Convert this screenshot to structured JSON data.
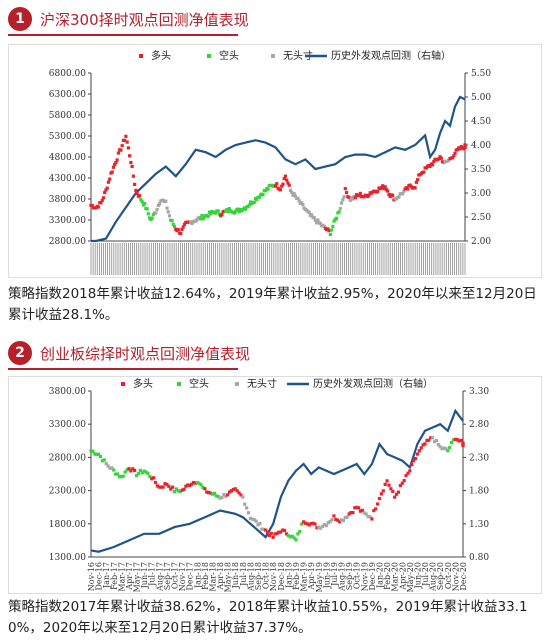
{
  "sections": [
    {
      "badge": "1",
      "title": "沪深300择时观点回测净值表现",
      "paragraph": "策略指数2018年累计收益12.64%，2019年累计收益2.95%，2020年以来至12月20日累计收益28.1%。"
    },
    {
      "badge": "2",
      "title": "创业板综择时观点回测净值表现",
      "paragraph": "策略指数2017年累计收益38.62%，2018年累计收益10.55%，2019年累计收益33.10%，2020年以来至12月20日累计收益37.37%。"
    }
  ],
  "legend_colors": {
    "long": "#e8232b",
    "short": "#35d43a",
    "neutral": "#a6a6a6",
    "line": "#1e5487"
  },
  "chart_data": [
    {
      "type": "scatter+line",
      "legend": [
        "多头",
        "空头",
        "无头寸",
        "历史外发观点回测（右轴）"
      ],
      "left_axis": {
        "ticks": [
          "6800.00",
          "6300.00",
          "5800.00",
          "5300.00",
          "4800.00",
          "4300.00",
          "3800.00",
          "3300.00",
          "2800.00"
        ],
        "ylim": [
          2800,
          6800
        ]
      },
      "right_axis": {
        "ticks": [
          "5.50",
          "5.00",
          "4.50",
          "4.00",
          "3.50",
          "3.00",
          "2.50",
          "2.00"
        ],
        "ylim": [
          2.0,
          5.5
        ]
      },
      "grid": false,
      "legend_position": "top",
      "x_labels_note": "dense overlapping date labels",
      "index_series": [
        {
          "t": 0,
          "v": 3650,
          "s": "long"
        },
        {
          "t": 1,
          "v": 3600,
          "s": "long"
        },
        {
          "t": 2,
          "v": 3700,
          "s": "long"
        },
        {
          "t": 3,
          "v": 4000,
          "s": "long"
        },
        {
          "t": 4,
          "v": 4400,
          "s": "long"
        },
        {
          "t": 5,
          "v": 4700,
          "s": "long"
        },
        {
          "t": 6,
          "v": 5000,
          "s": "long"
        },
        {
          "t": 7,
          "v": 5300,
          "s": "long"
        },
        {
          "t": 8,
          "v": 4700,
          "s": "long"
        },
        {
          "t": 9,
          "v": 4000,
          "s": "long"
        },
        {
          "t": 10,
          "v": 3800,
          "s": "short"
        },
        {
          "t": 11,
          "v": 3600,
          "s": "short"
        },
        {
          "t": 12,
          "v": 3300,
          "s": "short"
        },
        {
          "t": 13,
          "v": 3500,
          "s": "neutral"
        },
        {
          "t": 14,
          "v": 3800,
          "s": "neutral"
        },
        {
          "t": 15,
          "v": 3700,
          "s": "neutral"
        },
        {
          "t": 16,
          "v": 3300,
          "s": "short"
        },
        {
          "t": 17,
          "v": 3100,
          "s": "long"
        },
        {
          "t": 18,
          "v": 3000,
          "s": "long"
        },
        {
          "t": 19,
          "v": 3200,
          "s": "long"
        },
        {
          "t": 20,
          "v": 3250,
          "s": "neutral"
        },
        {
          "t": 21,
          "v": 3300,
          "s": "neutral"
        },
        {
          "t": 22,
          "v": 3350,
          "s": "short"
        },
        {
          "t": 23,
          "v": 3400,
          "s": "short"
        },
        {
          "t": 24,
          "v": 3450,
          "s": "short"
        },
        {
          "t": 25,
          "v": 3500,
          "s": "short"
        },
        {
          "t": 26,
          "v": 3450,
          "s": "long"
        },
        {
          "t": 27,
          "v": 3500,
          "s": "short"
        },
        {
          "t": 28,
          "v": 3550,
          "s": "short"
        },
        {
          "t": 29,
          "v": 3500,
          "s": "short"
        },
        {
          "t": 30,
          "v": 3550,
          "s": "short"
        },
        {
          "t": 31,
          "v": 3600,
          "s": "short"
        },
        {
          "t": 32,
          "v": 3700,
          "s": "short"
        },
        {
          "t": 33,
          "v": 3800,
          "s": "short"
        },
        {
          "t": 34,
          "v": 3900,
          "s": "short"
        },
        {
          "t": 35,
          "v": 4000,
          "s": "short"
        },
        {
          "t": 36,
          "v": 4100,
          "s": "short"
        },
        {
          "t": 37,
          "v": 4150,
          "s": "long"
        },
        {
          "t": 38,
          "v": 4050,
          "s": "long"
        },
        {
          "t": 39,
          "v": 4350,
          "s": "long"
        },
        {
          "t": 40,
          "v": 4000,
          "s": "neutral"
        },
        {
          "t": 41,
          "v": 3850,
          "s": "neutral"
        },
        {
          "t": 42,
          "v": 3700,
          "s": "neutral"
        },
        {
          "t": 43,
          "v": 3550,
          "s": "neutral"
        },
        {
          "t": 44,
          "v": 3400,
          "s": "neutral"
        },
        {
          "t": 45,
          "v": 3300,
          "s": "neutral"
        },
        {
          "t": 46,
          "v": 3200,
          "s": "neutral"
        },
        {
          "t": 47,
          "v": 3100,
          "s": "long"
        },
        {
          "t": 48,
          "v": 3000,
          "s": "short"
        },
        {
          "t": 49,
          "v": 3300,
          "s": "short"
        },
        {
          "t": 50,
          "v": 3600,
          "s": "neutral"
        },
        {
          "t": 51,
          "v": 4000,
          "s": "long"
        },
        {
          "t": 52,
          "v": 3800,
          "s": "neutral"
        },
        {
          "t": 53,
          "v": 3850,
          "s": "long"
        },
        {
          "t": 54,
          "v": 3900,
          "s": "long"
        },
        {
          "t": 55,
          "v": 3850,
          "s": "long"
        },
        {
          "t": 56,
          "v": 3950,
          "s": "long"
        },
        {
          "t": 57,
          "v": 4000,
          "s": "long"
        },
        {
          "t": 58,
          "v": 4050,
          "s": "long"
        },
        {
          "t": 59,
          "v": 4100,
          "s": "long"
        },
        {
          "t": 60,
          "v": 3900,
          "s": "long"
        },
        {
          "t": 61,
          "v": 3800,
          "s": "neutral"
        },
        {
          "t": 62,
          "v": 3900,
          "s": "neutral"
        },
        {
          "t": 63,
          "v": 4000,
          "s": "long"
        },
        {
          "t": 64,
          "v": 4100,
          "s": "long"
        },
        {
          "t": 65,
          "v": 4100,
          "s": "long"
        },
        {
          "t": 66,
          "v": 4400,
          "s": "long"
        },
        {
          "t": 67,
          "v": 4500,
          "s": "long"
        },
        {
          "t": 68,
          "v": 4600,
          "s": "long"
        },
        {
          "t": 69,
          "v": 4700,
          "s": "long"
        },
        {
          "t": 70,
          "v": 4800,
          "s": "long"
        },
        {
          "t": 71,
          "v": 4650,
          "s": "neutral"
        },
        {
          "t": 72,
          "v": 4750,
          "s": "long"
        },
        {
          "t": 73,
          "v": 4900,
          "s": "long"
        },
        {
          "t": 74,
          "v": 5000,
          "s": "long"
        },
        {
          "t": 75,
          "v": 5050,
          "s": "long"
        }
      ],
      "nav_line": [
        {
          "t": 0,
          "v": 2.0
        },
        {
          "t": 1,
          "v": 2.0
        },
        {
          "t": 3,
          "v": 2.05
        },
        {
          "t": 5,
          "v": 2.4
        },
        {
          "t": 7,
          "v": 2.7
        },
        {
          "t": 9,
          "v": 3.0
        },
        {
          "t": 11,
          "v": 3.2
        },
        {
          "t": 13,
          "v": 3.4
        },
        {
          "t": 15,
          "v": 3.55
        },
        {
          "t": 17,
          "v": 3.35
        },
        {
          "t": 19,
          "v": 3.6
        },
        {
          "t": 21,
          "v": 3.9
        },
        {
          "t": 23,
          "v": 3.85
        },
        {
          "t": 25,
          "v": 3.75
        },
        {
          "t": 27,
          "v": 3.9
        },
        {
          "t": 29,
          "v": 4.0
        },
        {
          "t": 31,
          "v": 4.05
        },
        {
          "t": 33,
          "v": 4.1
        },
        {
          "t": 35,
          "v": 4.05
        },
        {
          "t": 37,
          "v": 3.95
        },
        {
          "t": 39,
          "v": 3.7
        },
        {
          "t": 41,
          "v": 3.6
        },
        {
          "t": 43,
          "v": 3.7
        },
        {
          "t": 45,
          "v": 3.5
        },
        {
          "t": 47,
          "v": 3.55
        },
        {
          "t": 49,
          "v": 3.6
        },
        {
          "t": 51,
          "v": 3.75
        },
        {
          "t": 53,
          "v": 3.8
        },
        {
          "t": 55,
          "v": 3.8
        },
        {
          "t": 57,
          "v": 3.75
        },
        {
          "t": 59,
          "v": 3.85
        },
        {
          "t": 61,
          "v": 3.95
        },
        {
          "t": 63,
          "v": 3.9
        },
        {
          "t": 65,
          "v": 4.0
        },
        {
          "t": 67,
          "v": 4.2
        },
        {
          "t": 68,
          "v": 3.75
        },
        {
          "t": 69,
          "v": 3.9
        },
        {
          "t": 70,
          "v": 4.25
        },
        {
          "t": 71,
          "v": 4.5
        },
        {
          "t": 72,
          "v": 4.4
        },
        {
          "t": 73,
          "v": 4.8
        },
        {
          "t": 74,
          "v": 5.0
        },
        {
          "t": 75,
          "v": 4.95
        }
      ]
    },
    {
      "type": "scatter+line",
      "legend": [
        "多头",
        "空头",
        "无头寸",
        "历史外发观点回测（右轴）"
      ],
      "left_axis": {
        "ticks": [
          "3800.00",
          "3300.00",
          "2800.00",
          "2300.00",
          "1800.00",
          "1300.00"
        ],
        "ylim": [
          1300,
          3800
        ]
      },
      "right_axis": {
        "ticks": [
          "3.30",
          "2.80",
          "2.30",
          "1.80",
          "1.30",
          "0.80"
        ],
        "ylim": [
          0.8,
          3.3
        ]
      },
      "grid": false,
      "legend_position": "top",
      "x_labels": [
        "Nov-16",
        "Dec-16",
        "Jan-17",
        "Feb-17",
        "Mar-17",
        "Apr-17",
        "May-17",
        "Jun-17",
        "Jul-17",
        "Aug-17",
        "Sep-17",
        "Oct-17",
        "Nov-17",
        "Dec-17",
        "Jan-18",
        "Feb-18",
        "Mar-18",
        "Apr-18",
        "May-18",
        "Jun-18",
        "Jul-18",
        "Aug-18",
        "Sep-18",
        "Oct-18",
        "Nov-18",
        "Dec-18",
        "Jan-19",
        "Feb-19",
        "Mar-19",
        "Apr-19",
        "May-19",
        "Jun-19",
        "Jul-19",
        "Aug-19",
        "Sep-19",
        "Oct-19",
        "Nov-19",
        "Dec-19",
        "Jan-20",
        "Feb-20",
        "Mar-20",
        "Apr-20",
        "May-20",
        "Jun-20",
        "Jul-20",
        "Aug-20",
        "Sep-20",
        "Oct-20",
        "Nov-20",
        "Dec-20"
      ],
      "index_series": [
        {
          "t": 0,
          "v": 2900,
          "s": "short"
        },
        {
          "t": 1,
          "v": 2850,
          "s": "short"
        },
        {
          "t": 2,
          "v": 2700,
          "s": "neutral"
        },
        {
          "t": 3,
          "v": 2600,
          "s": "short"
        },
        {
          "t": 4,
          "v": 2500,
          "s": "short"
        },
        {
          "t": 5,
          "v": 2650,
          "s": "long"
        },
        {
          "t": 6,
          "v": 2550,
          "s": "short"
        },
        {
          "t": 7,
          "v": 2600,
          "s": "short"
        },
        {
          "t": 8,
          "v": 2500,
          "s": "long"
        },
        {
          "t": 9,
          "v": 2350,
          "s": "long"
        },
        {
          "t": 10,
          "v": 2400,
          "s": "long"
        },
        {
          "t": 11,
          "v": 2300,
          "s": "short"
        },
        {
          "t": 12,
          "v": 2300,
          "s": "long"
        },
        {
          "t": 13,
          "v": 2400,
          "s": "long"
        },
        {
          "t": 14,
          "v": 2450,
          "s": "short"
        },
        {
          "t": 15,
          "v": 2300,
          "s": "long"
        },
        {
          "t": 16,
          "v": 2250,
          "s": "short"
        },
        {
          "t": 17,
          "v": 2200,
          "s": "neutral"
        },
        {
          "t": 18,
          "v": 2250,
          "s": "long"
        },
        {
          "t": 19,
          "v": 2300,
          "s": "long"
        },
        {
          "t": 20,
          "v": 2200,
          "s": "neutral"
        },
        {
          "t": 21,
          "v": 1900,
          "s": "neutral"
        },
        {
          "t": 22,
          "v": 1800,
          "s": "neutral"
        },
        {
          "t": 23,
          "v": 1700,
          "s": "long"
        },
        {
          "t": 24,
          "v": 1600,
          "s": "long"
        },
        {
          "t": 25,
          "v": 1700,
          "s": "long"
        },
        {
          "t": 26,
          "v": 1650,
          "s": "short"
        },
        {
          "t": 27,
          "v": 1550,
          "s": "short"
        },
        {
          "t": 28,
          "v": 1850,
          "s": "long"
        },
        {
          "t": 29,
          "v": 1800,
          "s": "long"
        },
        {
          "t": 30,
          "v": 1750,
          "s": "neutral"
        },
        {
          "t": 31,
          "v": 1800,
          "s": "neutral"
        },
        {
          "t": 32,
          "v": 1900,
          "s": "long"
        },
        {
          "t": 33,
          "v": 1850,
          "s": "neutral"
        },
        {
          "t": 34,
          "v": 1950,
          "s": "long"
        },
        {
          "t": 35,
          "v": 2050,
          "s": "long"
        },
        {
          "t": 36,
          "v": 1950,
          "s": "neutral"
        },
        {
          "t": 37,
          "v": 1900,
          "s": "long"
        },
        {
          "t": 38,
          "v": 2200,
          "s": "long"
        },
        {
          "t": 39,
          "v": 2450,
          "s": "long"
        },
        {
          "t": 40,
          "v": 2200,
          "s": "long"
        },
        {
          "t": 41,
          "v": 2400,
          "s": "long"
        },
        {
          "t": 42,
          "v": 2600,
          "s": "long"
        },
        {
          "t": 43,
          "v": 2850,
          "s": "long"
        },
        {
          "t": 44,
          "v": 3000,
          "s": "long"
        },
        {
          "t": 45,
          "v": 3100,
          "s": "neutral"
        },
        {
          "t": 46,
          "v": 2950,
          "s": "neutral"
        },
        {
          "t": 47,
          "v": 2900,
          "s": "short"
        },
        {
          "t": 48,
          "v": 3100,
          "s": "long"
        },
        {
          "t": 49,
          "v": 3000,
          "s": "long"
        }
      ],
      "nav_line": [
        {
          "t": 0,
          "v": 0.9
        },
        {
          "t": 1,
          "v": 0.88
        },
        {
          "t": 3,
          "v": 0.95
        },
        {
          "t": 5,
          "v": 1.05
        },
        {
          "t": 7,
          "v": 1.15
        },
        {
          "t": 9,
          "v": 1.15
        },
        {
          "t": 11,
          "v": 1.25
        },
        {
          "t": 13,
          "v": 1.3
        },
        {
          "t": 15,
          "v": 1.4
        },
        {
          "t": 17,
          "v": 1.5
        },
        {
          "t": 19,
          "v": 1.45
        },
        {
          "t": 20,
          "v": 1.4
        },
        {
          "t": 21,
          "v": 1.3
        },
        {
          "t": 22,
          "v": 1.2
        },
        {
          "t": 23,
          "v": 1.1
        },
        {
          "t": 24,
          "v": 1.3
        },
        {
          "t": 25,
          "v": 1.7
        },
        {
          "t": 26,
          "v": 1.95
        },
        {
          "t": 27,
          "v": 2.1
        },
        {
          "t": 28,
          "v": 2.2
        },
        {
          "t": 29,
          "v": 2.05
        },
        {
          "t": 30,
          "v": 2.15
        },
        {
          "t": 31,
          "v": 2.1
        },
        {
          "t": 32,
          "v": 2.05
        },
        {
          "t": 33,
          "v": 2.1
        },
        {
          "t": 34,
          "v": 2.15
        },
        {
          "t": 35,
          "v": 2.2
        },
        {
          "t": 36,
          "v": 2.05
        },
        {
          "t": 37,
          "v": 2.2
        },
        {
          "t": 38,
          "v": 2.5
        },
        {
          "t": 39,
          "v": 2.35
        },
        {
          "t": 40,
          "v": 2.3
        },
        {
          "t": 41,
          "v": 2.25
        },
        {
          "t": 42,
          "v": 2.15
        },
        {
          "t": 43,
          "v": 2.5
        },
        {
          "t": 44,
          "v": 2.7
        },
        {
          "t": 45,
          "v": 2.75
        },
        {
          "t": 46,
          "v": 2.8
        },
        {
          "t": 47,
          "v": 2.7
        },
        {
          "t": 48,
          "v": 3.0
        },
        {
          "t": 49,
          "v": 2.85
        }
      ]
    }
  ]
}
